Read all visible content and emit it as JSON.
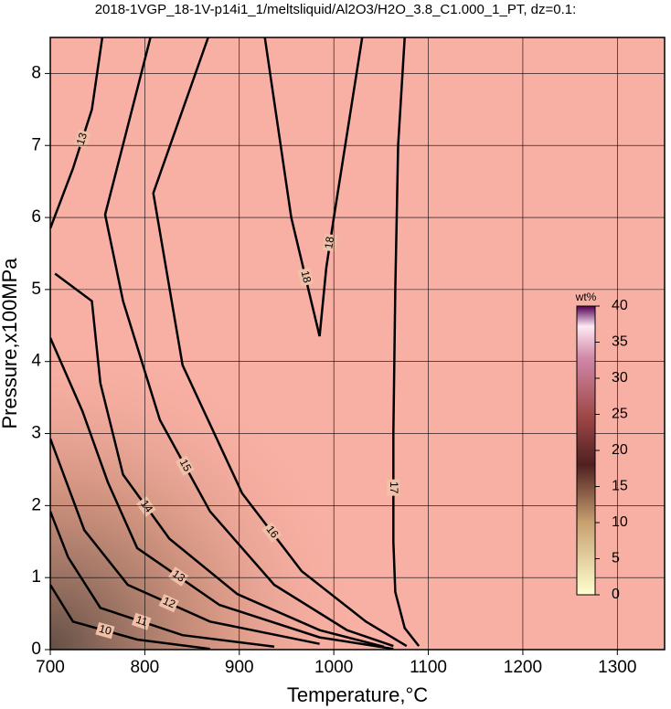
{
  "chart_data": {
    "type": "contour",
    "title": "2018-1VGP_18-1V-p14i1_1/meltsliquid/Al2O3/H2O_3.8_C1.000_1_PT, dz=0.1:",
    "x_label": "Temperature,°C",
    "y_label": "Pressure,x100MPa",
    "xlim": [
      700,
      1350
    ],
    "ylim": [
      0,
      8.5
    ],
    "xticks": [
      700,
      800,
      900,
      1000,
      1100,
      1200,
      1300
    ],
    "yticks": [
      0,
      1,
      2,
      3,
      4,
      5,
      6,
      7,
      8
    ],
    "grid": true,
    "colorbar": {
      "label": "wt%",
      "lim": [
        0,
        40
      ],
      "ticks": [
        0,
        5,
        10,
        15,
        20,
        25,
        30,
        35,
        40
      ]
    },
    "contours": [
      {
        "level": 17,
        "x": [
          1075,
          1068,
          1065,
          1063,
          1063,
          1065,
          1075,
          1090
        ],
        "y": [
          8.5,
          7.0,
          5.0,
          3.0,
          1.5,
          0.8,
          0.3,
          0.05
        ]
      },
      {
        "level": 18,
        "x": [
          927,
          955,
          985
        ],
        "y": [
          8.5,
          6.0,
          4.35
        ]
      },
      {
        "level": 18,
        "x": [
          985,
          992,
          1000,
          1030
        ],
        "y": [
          4.35,
          5.3,
          6.0,
          8.5
        ]
      },
      {
        "level": 16,
        "x": [
          867,
          809,
          840,
          903,
          966,
          1034,
          1077
        ],
        "y": [
          8.5,
          6.34,
          3.95,
          2.17,
          1.09,
          0.39,
          0.05
        ]
      },
      {
        "level": 15,
        "x": [
          806,
          758,
          777,
          816,
          869,
          937,
          1014,
          1063
        ],
        "y": [
          8.5,
          6.04,
          4.84,
          3.19,
          1.92,
          0.9,
          0.27,
          0.05
        ]
      },
      {
        "level": 14,
        "x": [
          705,
          744,
          753,
          777,
          826,
          898,
          985,
          1053
        ],
        "y": [
          5.22,
          4.84,
          3.7,
          2.43,
          1.54,
          0.77,
          0.27,
          0.04
        ]
      },
      {
        "level": 13,
        "x": [
          700,
          724,
          744,
          755
        ],
        "y": [
          5.85,
          6.68,
          7.5,
          8.5
        ]
      },
      {
        "level": 13,
        "x": [
          700,
          734,
          761,
          792,
          879,
          985,
          1063
        ],
        "y": [
          4.33,
          3.31,
          2.32,
          1.41,
          0.62,
          0.17,
          0.01
        ]
      },
      {
        "level": 12,
        "x": [
          700,
          736,
          782,
          869,
          985
        ],
        "y": [
          2.93,
          1.66,
          0.9,
          0.39,
          0.08
        ]
      },
      {
        "level": 11,
        "x": [
          700,
          719,
          753,
          840,
          937
        ],
        "y": [
          1.92,
          1.28,
          0.58,
          0.2,
          0.04
        ]
      },
      {
        "level": 10,
        "x": [
          700,
          724,
          792,
          869
        ],
        "y": [
          0.9,
          0.39,
          0.14,
          0.01
        ]
      }
    ]
  }
}
